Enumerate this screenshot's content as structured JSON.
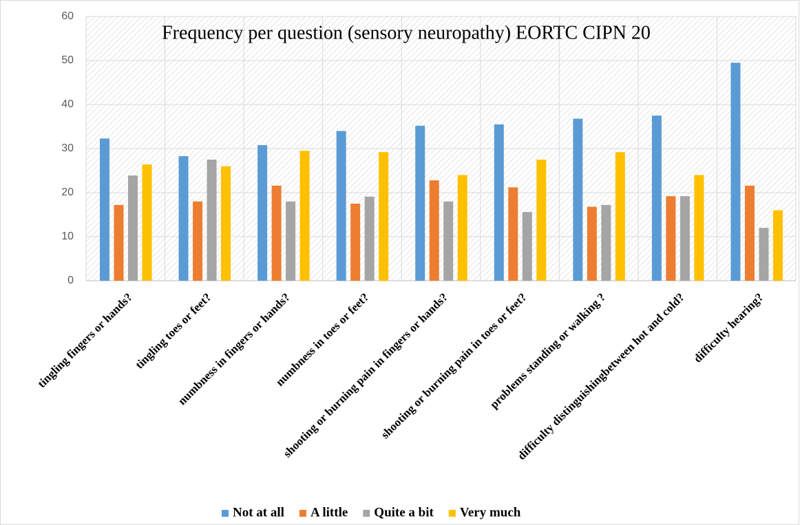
{
  "chart_data": {
    "type": "bar",
    "title": "Frequency per question (sensory neuropathy) EORTC CIPN 20",
    "categories": [
      "tingling fingers or hands?",
      "tingling toes or feet?",
      "numbness in fingers or hands?",
      "numbness in toes or feet?",
      "shooting or burning pain in fingers or hands?",
      "shooting or burning pain in toes or feet?",
      "problems standing or walking ?",
      "difficulty distinguishingbetween hot and cold?",
      "difficulty hearing?"
    ],
    "series": [
      {
        "name": "Not at all",
        "color": "#5b9bd5",
        "values": [
          32.3,
          28.3,
          30.8,
          34,
          35.2,
          35.5,
          36.8,
          37.5,
          49.5
        ]
      },
      {
        "name": "A little",
        "color": "#ed7d31",
        "values": [
          17.2,
          18,
          21.6,
          17.5,
          22.8,
          21.2,
          16.8,
          19.2,
          21.6
        ]
      },
      {
        "name": "Quite a bit",
        "color": "#a5a5a5",
        "values": [
          23.9,
          27.5,
          18,
          19.1,
          18,
          15.6,
          17.2,
          19.2,
          12
        ]
      },
      {
        "name": "Very much",
        "color": "#ffc000",
        "values": [
          26.4,
          26,
          29.5,
          29.2,
          24,
          27.5,
          29.2,
          24,
          16
        ]
      }
    ],
    "ylim": [
      0,
      60
    ],
    "yticks": [
      0,
      10,
      20,
      30,
      40,
      50,
      60
    ],
    "grid": true,
    "legend": "bottom"
  }
}
